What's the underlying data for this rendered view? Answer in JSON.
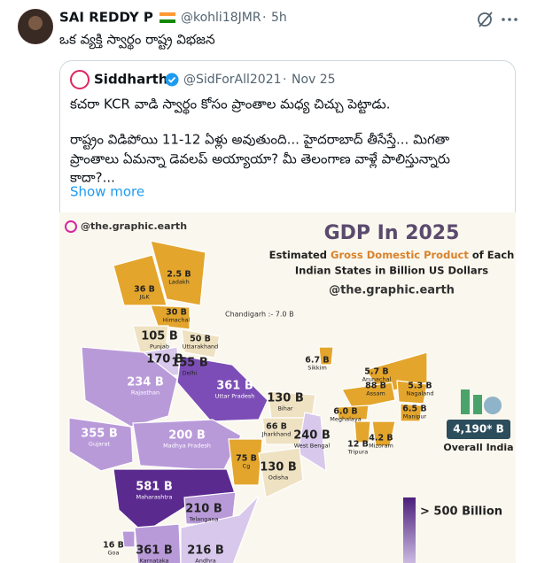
{
  "tweet": {
    "author": "SAI REDDY P",
    "handle": "@kohli18JMR",
    "separator": "·",
    "time": "5h",
    "text": "ఒక వ్యక్తి స్వార్థం రాష్ట్ర విభజన",
    "quote": {
      "author": "Siddharth",
      "handle": "@SidForAll2021",
      "separator": "·",
      "date": "Nov 25",
      "lines": [
        "కచరా KCR వాడి స్వార్థం కోసం ప్రాంతాల మధ్య చిచ్చు పెట్టాడు.",
        "రాష్ట్రం విడిపోయి 11-12 ఏళ్లు అవుతుంది... హైదరాబాద్ తీసేస్తే... మిగతా",
        "ప్రాంతాలు ఏమన్నా డెవలప్ అయ్యాయా? మీ తెలంగాణ వాళ్లే పాలిస్తున్నారు",
        "కాదా?..."
      ],
      "show_more": "Show more"
    }
  },
  "image": {
    "handle": "@the.graphic.earth",
    "title": "GDP In 2025",
    "subtitle": [
      "Estimated ",
      "Gross Domestic Product",
      " of Each",
      "Indian States in Billion US Dollars"
    ],
    "credit": "@the.graphic.earth",
    "chandigarh": "Chandigarh :- 7.0 B",
    "legend": "> 500 Billion",
    "overall_value": "4,190* B",
    "overall_label": "Overall India",
    "labels": [
      {
        "value": "2.5 B",
        "name": "Ladakh"
      },
      {
        "value": "36 B",
        "name": "J&K"
      },
      {
        "value": "30 B",
        "name": "Himachal"
      },
      {
        "value": "105 B",
        "name": "Punjab"
      },
      {
        "value": "170 B"
      },
      {
        "value": "50 B",
        "name": "Uttarakhand"
      },
      {
        "value": "155 B",
        "name": "Delhi"
      },
      {
        "value": "234 B",
        "name": "Rajasthan"
      },
      {
        "value": "361 B",
        "name": "Uttar Pradesh"
      },
      {
        "value": "130 B",
        "name": "Bihar"
      },
      {
        "value": "6.7 B",
        "name": "Sikkim"
      },
      {
        "value": "5.7 B",
        "name": "Arunachal"
      },
      {
        "value": "88 B",
        "name": "Assam"
      },
      {
        "value": "5.3 B",
        "name": "Nagaland"
      },
      {
        "value": "6.0 B",
        "name": "Meghalaya"
      },
      {
        "value": "6.5 B",
        "name": "Manipur"
      },
      {
        "value": "12 B",
        "name": "Tripura"
      },
      {
        "value": "4.2 B",
        "name": "Mizoram"
      },
      {
        "value": "355 B",
        "name": "Gujarat"
      },
      {
        "value": "200 B",
        "name": "Madhya Pradesh"
      },
      {
        "value": "66 B",
        "name": "Jharkhand"
      },
      {
        "value": "240 B",
        "name": "West Bengal"
      },
      {
        "value": "75 B",
        "name": "Cg"
      },
      {
        "value": "130 B",
        "name": "Odisha"
      },
      {
        "value": "581 B",
        "name": "Maharashtra"
      },
      {
        "value": "210 B",
        "name": "Telangana"
      },
      {
        "value": "16 B",
        "name": "Goa"
      },
      {
        "value": "361 B",
        "name": "Karnataka"
      },
      {
        "value": "216 B",
        "name": "Andhra"
      }
    ]
  }
}
